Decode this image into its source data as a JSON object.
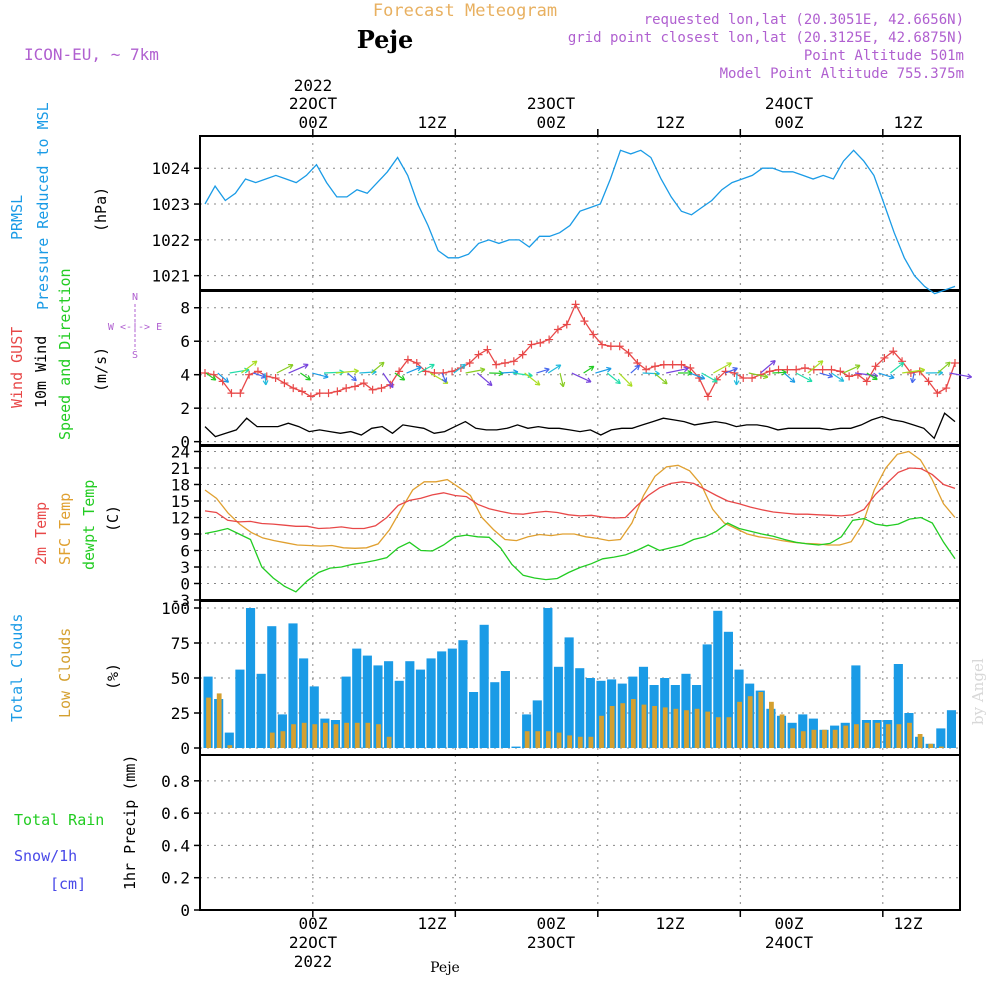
{
  "header": {
    "title": "Forecast Meteogram",
    "location": "Peje",
    "model": "ICON-EU, ~ 7km",
    "requested": "requested lon,lat (20.3051E, 42.6656N)",
    "grid_point": "grid point closest lon,lat (20.3125E, 42.6875N)",
    "point_altitude": "Point Altitude 501m",
    "model_altitude": "Model Point Altitude 755.375m"
  },
  "time_axis": {
    "top_year": "2022",
    "top_dates": [
      "22OCT",
      "23OCT",
      "24OCT"
    ],
    "bottom_year": "2022",
    "bottom_dates": [
      "22OCT",
      "23OCT",
      "24OCT"
    ],
    "ticks": [
      "00Z",
      "12Z",
      "00Z",
      "12Z",
      "00Z",
      "12Z"
    ],
    "footer_location": "Peje"
  },
  "watermark": "by Angel",
  "colors": {
    "pressure": "#1a9be6",
    "gust": "#e84848",
    "wind": "#000000",
    "direction": "#22cc22",
    "temp2m": "#e84848",
    "sfc": "#e0a030",
    "dewpt": "#22cc22",
    "total_clouds": "#1a9be6",
    "low_clouds": "#d4a030",
    "rain": "#22cc22",
    "snow": "#4848e8",
    "header_purple": "#b060d0",
    "title_orange": "#e8b060"
  },
  "panels": {
    "pressure": {
      "label_line1": "PRMSL",
      "label_line2": "Pressure Reduced to MSL",
      "unit": "(hPa)"
    },
    "wind": {
      "label_gust": "Wind GUST",
      "label_wind": "10m Wind",
      "label_dir": "Speed and Direction",
      "unit": "(m/s)",
      "compass_n": "N",
      "compass_s": "S",
      "compass_ew": "W <-|-> E"
    },
    "temp": {
      "label_2m": "2m Temp",
      "label_sfc": "SFC Temp",
      "label_dew": "dewpt Temp",
      "unit": "(C)"
    },
    "clouds": {
      "label_total": "Total Clouds",
      "label_low": "Low Clouds",
      "unit": "(%)"
    },
    "precip": {
      "label_total_rain": "Total  Rain",
      "label_snow": "Snow/1h",
      "label_snow_unit": "[cm]",
      "unit": "1hr Precip (mm)"
    }
  },
  "chart_data": [
    {
      "type": "line",
      "title": "PRMSL Pressure Reduced to MSL",
      "ylabel": "(hPa)",
      "ylim": [
        1020.6,
        1024.9
      ],
      "yticks": [
        1021,
        1022,
        1023,
        1024
      ],
      "xlim": [
        0,
        64
      ],
      "series": [
        {
          "name": "PRMSL",
          "values": [
            1023.0,
            1023.5,
            1023.1,
            1023.3,
            1023.7,
            1023.6,
            1023.7,
            1023.8,
            1023.7,
            1023.6,
            1023.8,
            1024.1,
            1023.6,
            1023.2,
            1023.2,
            1023.4,
            1023.3,
            1023.6,
            1023.9,
            1024.3,
            1023.8,
            1023.0,
            1022.4,
            1021.7,
            1021.5,
            1021.5,
            1021.6,
            1021.9,
            1022.0,
            1021.9,
            1022.0,
            1022.0,
            1021.8,
            1022.1,
            1022.1,
            1022.2,
            1022.4,
            1022.8,
            1022.9,
            1023.0,
            1023.7,
            1024.5,
            1024.4,
            1024.5,
            1024.3,
            1023.7,
            1023.2,
            1022.8,
            1022.7,
            1022.9,
            1023.1,
            1023.4,
            1023.6,
            1023.7,
            1023.8,
            1024.0,
            1024.0,
            1023.9,
            1023.9,
            1023.8,
            1023.7,
            1023.8,
            1023.7,
            1024.2,
            1024.5,
            1024.2,
            1023.8,
            1023.0,
            1022.2,
            1021.5,
            1021.0,
            1020.7,
            1020.5,
            1020.6,
            1020.7
          ]
        }
      ]
    },
    {
      "type": "line",
      "title": "Wind GUST / 10m Wind Speed and Direction",
      "ylabel": "(m/s)",
      "ylim": [
        -0.2,
        9.0
      ],
      "yticks": [
        0,
        2,
        4,
        6,
        8
      ],
      "xlim": [
        0,
        64
      ],
      "series": [
        {
          "name": "Wind GUST",
          "values": [
            4.1,
            4.0,
            3.6,
            2.9,
            2.9,
            4.0,
            4.2,
            3.9,
            3.8,
            3.5,
            3.2,
            3.0,
            2.7,
            2.9,
            2.9,
            3.0,
            3.2,
            3.3,
            3.5,
            3.1,
            3.2,
            3.4,
            4.2,
            4.9,
            4.7,
            4.2,
            4.1,
            4.1,
            4.2,
            4.4,
            4.7,
            5.2,
            5.5,
            4.6,
            4.7,
            4.8,
            5.2,
            5.8,
            5.9,
            6.1,
            6.7,
            7.0,
            8.2,
            7.2,
            6.4,
            5.8,
            5.7,
            5.7,
            5.3,
            4.7,
            4.3,
            4.5,
            4.6,
            4.6,
            4.6,
            4.4,
            3.8,
            2.7,
            3.7,
            4.2,
            4.1,
            3.8,
            3.8,
            4.0,
            4.2,
            4.3,
            4.3,
            4.3,
            4.4,
            4.3,
            4.3,
            4.3,
            4.2,
            3.9,
            4.0,
            3.6,
            4.5,
            5.0,
            5.4,
            4.8,
            4.1,
            4.2,
            3.6,
            2.9,
            3.2,
            4.7
          ]
        },
        {
          "name": "10m Wind",
          "values": [
            0.9,
            0.3,
            0.5,
            0.7,
            1.4,
            0.9,
            0.9,
            0.9,
            1.1,
            0.9,
            0.6,
            0.7,
            0.6,
            0.5,
            0.6,
            0.4,
            0.8,
            0.9,
            0.5,
            1.0,
            0.9,
            0.8,
            0.5,
            0.6,
            0.9,
            1.2,
            0.8,
            0.7,
            0.7,
            0.8,
            1.0,
            0.8,
            0.9,
            0.8,
            0.8,
            0.7,
            0.6,
            0.7,
            0.4,
            0.7,
            0.8,
            0.8,
            1.0,
            1.2,
            1.4,
            1.3,
            1.2,
            1.0,
            1.1,
            1.2,
            1.1,
            0.9,
            1.0,
            1.0,
            0.9,
            0.7,
            0.8,
            0.8,
            0.8,
            0.8,
            0.7,
            0.8,
            0.8,
            1.0,
            1.3,
            1.5,
            1.3,
            1.2,
            1.0,
            0.8,
            0.2,
            1.7,
            1.2
          ]
        }
      ]
    },
    {
      "type": "line",
      "title": "2m Temp / SFC Temp / dewpt Temp",
      "ylabel": "(C)",
      "ylim": [
        -3,
        25
      ],
      "yticks": [
        -3,
        0,
        3,
        6,
        9,
        12,
        15,
        18,
        21,
        24
      ],
      "xlim": [
        0,
        64
      ],
      "series": [
        {
          "name": "2m Temp",
          "values": [
            13.2,
            12.9,
            11.5,
            11.2,
            11.3,
            10.9,
            10.8,
            10.6,
            10.4,
            10.4,
            10.0,
            10.1,
            10.3,
            10.0,
            10.0,
            10.5,
            12.0,
            14.2,
            15.1,
            15.5,
            16.1,
            16.5,
            16.0,
            15.8,
            14.4,
            13.6,
            13.1,
            12.7,
            12.6,
            12.9,
            13.1,
            12.9,
            12.5,
            12.3,
            12.4,
            12.1,
            11.9,
            12.0,
            14.1,
            16.0,
            17.4,
            18.2,
            18.5,
            18.2,
            17.1,
            16.0,
            15.0,
            14.5,
            13.9,
            13.4,
            13.0,
            12.8,
            12.6,
            12.6,
            12.5,
            12.4,
            12.3,
            12.5,
            13.5,
            16.2,
            18.2,
            20.2,
            21.0,
            20.9,
            19.8,
            18.0,
            17.3
          ]
        },
        {
          "name": "SFC Temp",
          "values": [
            17.0,
            15.5,
            12.8,
            10.8,
            9.3,
            8.3,
            7.8,
            7.4,
            7.0,
            6.9,
            6.8,
            6.9,
            6.5,
            6.4,
            6.5,
            7.2,
            9.8,
            13.5,
            17.0,
            18.5,
            18.5,
            18.9,
            17.5,
            16.0,
            12.0,
            9.8,
            8.0,
            7.8,
            8.5,
            8.9,
            8.7,
            9.0,
            9.0,
            8.5,
            8.2,
            7.8,
            8.0,
            11.0,
            16.0,
            19.5,
            21.2,
            21.5,
            20.5,
            18.0,
            13.5,
            11.0,
            10.0,
            9.0,
            8.5,
            8.2,
            7.8,
            7.5,
            7.3,
            7.2,
            7.0,
            7.0,
            7.6,
            10.8,
            17.0,
            21.0,
            23.5,
            24.0,
            22.5,
            19.0,
            14.5,
            12.0
          ]
        },
        {
          "name": "dewpt Temp",
          "values": [
            9.1,
            9.5,
            10.0,
            9.0,
            8.0,
            3.0,
            1.0,
            -0.5,
            -1.5,
            0.5,
            2.0,
            2.8,
            3.0,
            3.5,
            3.8,
            4.2,
            4.7,
            6.5,
            7.5,
            6.0,
            5.9,
            7.0,
            8.5,
            8.8,
            8.5,
            8.4,
            6.5,
            3.5,
            1.5,
            1.0,
            0.7,
            0.9,
            2.0,
            2.9,
            3.6,
            4.5,
            4.8,
            5.2,
            6.0,
            7.0,
            6.0,
            6.5,
            7.0,
            8.0,
            8.5,
            9.5,
            11.0,
            10.0,
            9.5,
            9.0,
            8.6,
            8.0,
            7.5,
            7.2,
            7.0,
            7.3,
            8.5,
            11.5,
            11.8,
            10.8,
            10.5,
            10.8,
            11.7,
            12.0,
            11.0,
            7.5,
            4.5
          ]
        }
      ]
    },
    {
      "type": "bar",
      "title": "Total Clouds / Low Clouds",
      "ylabel": "(%)",
      "ylim": [
        -5,
        105
      ],
      "yticks": [
        0,
        25,
        50,
        75,
        100
      ],
      "xlim": [
        0,
        64
      ],
      "series": [
        {
          "name": "Total Clouds",
          "values": [
            51,
            35,
            11,
            56,
            100,
            53,
            87,
            24,
            89,
            64,
            44,
            21,
            20,
            51,
            71,
            66,
            59,
            62,
            48,
            62,
            56,
            64,
            69,
            71,
            77,
            40,
            88,
            47,
            55,
            1,
            24,
            34,
            100,
            58,
            79,
            57,
            50,
            48,
            49,
            46,
            51,
            58,
            45,
            50,
            45,
            53,
            45,
            74,
            98,
            83,
            56,
            46,
            41,
            28,
            23,
            18,
            24,
            21,
            13,
            16,
            18,
            59,
            20,
            20,
            20,
            60,
            25,
            8,
            3,
            14,
            27
          ]
        },
        {
          "name": "Low Clouds",
          "values": [
            36,
            39,
            2,
            0,
            0,
            0,
            11,
            12,
            17,
            18,
            17,
            18,
            17,
            18,
            18,
            18,
            17,
            8,
            0,
            0,
            0,
            0,
            0,
            0,
            0,
            0,
            0,
            0,
            0,
            0,
            12,
            12,
            12,
            11,
            9,
            8,
            8,
            23,
            30,
            32,
            35,
            31,
            30,
            29,
            28,
            27,
            28,
            26,
            22,
            22,
            33,
            37,
            40,
            33,
            24,
            14,
            12,
            13,
            13,
            13,
            16,
            17,
            18,
            18,
            17,
            17,
            18,
            10,
            3,
            1,
            0
          ]
        }
      ]
    },
    {
      "type": "bar",
      "title": "Total Rain / Snow 1hr Precip",
      "ylabel": "1hr Precip (mm)",
      "ylim": [
        0,
        0.96
      ],
      "yticks": [
        0,
        0.2,
        0.4,
        0.6,
        0.8
      ],
      "xlim": [
        0,
        64
      ],
      "series": [
        {
          "name": "Total Rain",
          "values": []
        },
        {
          "name": "Snow/1h",
          "values": []
        }
      ]
    }
  ]
}
